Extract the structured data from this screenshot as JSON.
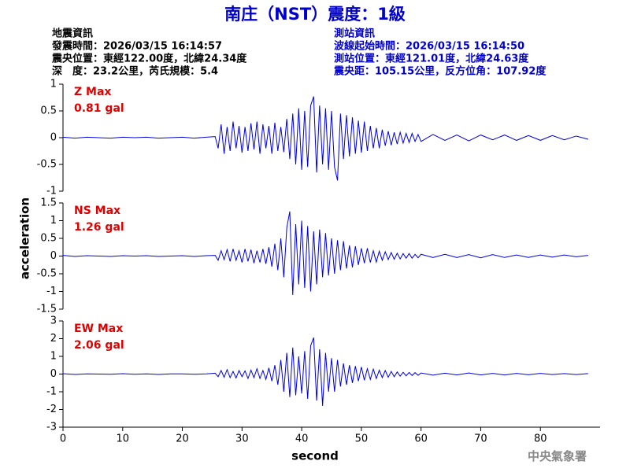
{
  "header": {
    "title": "南庄（NST）震度：1級",
    "event": [
      "地震資訊",
      "發震時間：2026/03/15 16:14:57",
      "震央位置：東經122.00度，北緯24.34度",
      "深　度：23.2公里，芮氏規模：5.4"
    ],
    "station": [
      "測站資訊",
      "波線起始時間：2026/03/15 16:14:50",
      "測站位置：東經121.01度，北緯24.63度",
      "震央距：105.15公里，反方位角：107.92度"
    ]
  },
  "footer": "中央氣象署",
  "chart_data": [
    {
      "type": "line",
      "annotation": "Z Max",
      "max_label": "0.81 gal",
      "annotation_color": "#e00000",
      "xlim": [
        0,
        90
      ],
      "ylim": [
        -1,
        1
      ],
      "yticks": [
        -1,
        -0.5,
        0,
        0.5,
        1
      ],
      "x": [
        0,
        2,
        4,
        6,
        8,
        10,
        12,
        14,
        16,
        18,
        20,
        22,
        24,
        25.5,
        26,
        26.5,
        27,
        27.5,
        28,
        28.5,
        29,
        29.5,
        30,
        30.5,
        31,
        31.5,
        32,
        32.5,
        33,
        33.5,
        34,
        34.5,
        35,
        35.5,
        36,
        36.5,
        37,
        37.5,
        38,
        38.5,
        39,
        39.5,
        40,
        40.5,
        41,
        41.5,
        42,
        42.5,
        43,
        43.5,
        44,
        44.5,
        45,
        45.5,
        46,
        46.5,
        47,
        47.5,
        48,
        48.5,
        49,
        49.5,
        50,
        50.5,
        51,
        51.5,
        52,
        52.5,
        53,
        53.5,
        54,
        54.5,
        55,
        55.5,
        56,
        56.5,
        57,
        57.5,
        58,
        58.5,
        59,
        59.5,
        60,
        62,
        64,
        66,
        68,
        70,
        72,
        74,
        76,
        78,
        80,
        82,
        84,
        86,
        88
      ],
      "series": [
        {
          "color": "#0000dd",
          "values": [
            0.01,
            -0.01,
            0.01,
            0,
            -0.01,
            0.01,
            0,
            0.01,
            -0.01,
            0,
            0.01,
            -0.01,
            0.01,
            0.02,
            -0.2,
            0.25,
            -0.3,
            0.2,
            -0.25,
            0.3,
            -0.2,
            0.22,
            -0.28,
            0.2,
            -0.25,
            0.27,
            -0.22,
            0.3,
            -0.3,
            0.25,
            -0.2,
            0.22,
            -0.3,
            0.28,
            -0.25,
            0.2,
            -0.27,
            0.35,
            -0.4,
            0.45,
            -0.5,
            0.55,
            -0.6,
            0.5,
            -0.55,
            0.6,
            0.77,
            -0.65,
            0.6,
            -0.5,
            0.55,
            -0.6,
            0.5,
            -0.55,
            -0.8,
            0.45,
            -0.4,
            0.42,
            -0.35,
            0.38,
            -0.3,
            0.32,
            -0.28,
            0.3,
            -0.25,
            0.22,
            -0.2,
            0.18,
            -0.2,
            0.15,
            -0.15,
            0.12,
            -0.14,
            0.1,
            -0.12,
            0.1,
            -0.1,
            0.08,
            -0.09,
            0.08,
            -0.07,
            0.06,
            -0.07,
            0.06,
            -0.05,
            0.05,
            -0.06,
            0.05,
            -0.04,
            0.05,
            -0.05,
            0.04,
            -0.05,
            0.04,
            -0.04,
            0.03,
            -0.03
          ]
        }
      ]
    },
    {
      "type": "line",
      "annotation": "NS Max",
      "max_label": "1.26 gal",
      "annotation_color": "#e00000",
      "ylabel": "acceleration",
      "xlim": [
        0,
        90
      ],
      "ylim": [
        -1.5,
        1.5
      ],
      "yticks": [
        -1.5,
        -1,
        -0.5,
        0,
        0.5,
        1,
        1.5
      ],
      "x": [
        0,
        2,
        4,
        6,
        8,
        10,
        12,
        14,
        16,
        18,
        20,
        22,
        24,
        25.5,
        26,
        26.5,
        27,
        27.5,
        28,
        28.5,
        29,
        29.5,
        30,
        30.5,
        31,
        31.5,
        32,
        32.5,
        33,
        33.5,
        34,
        34.5,
        35,
        35.5,
        36,
        36.5,
        37,
        37.5,
        38,
        38.5,
        39,
        39.5,
        40,
        40.5,
        41,
        41.5,
        42,
        42.5,
        43,
        43.5,
        44,
        44.5,
        45,
        45.5,
        46,
        46.5,
        47,
        47.5,
        48,
        48.5,
        49,
        49.5,
        50,
        50.5,
        51,
        51.5,
        52,
        52.5,
        53,
        53.5,
        54,
        54.5,
        55,
        55.5,
        56,
        56.5,
        57,
        57.5,
        58,
        58.5,
        59,
        59.5,
        60,
        62,
        64,
        66,
        68,
        70,
        72,
        74,
        76,
        78,
        80,
        82,
        84,
        86,
        88
      ],
      "series": [
        {
          "color": "#0000dd",
          "values": [
            0.02,
            -0.01,
            0.01,
            0,
            -0.01,
            0.01,
            0,
            0.01,
            -0.01,
            0,
            0.01,
            -0.01,
            0.01,
            0.02,
            -0.12,
            0.15,
            -0.1,
            0.18,
            -0.15,
            0.2,
            -0.12,
            0.15,
            -0.18,
            0.2,
            -0.15,
            0.18,
            -0.2,
            0.15,
            -0.18,
            0.2,
            -0.22,
            0.25,
            -0.3,
            0.35,
            -0.4,
            0.5,
            -0.6,
            0.8,
            1.26,
            -1.1,
            0.9,
            -0.8,
            1.0,
            -0.9,
            0.85,
            -1.0,
            0.7,
            -0.8,
            0.75,
            -0.6,
            0.65,
            -0.55,
            0.5,
            -0.5,
            0.45,
            -0.4,
            0.42,
            -0.35,
            0.3,
            -0.32,
            0.28,
            -0.25,
            0.22,
            -0.2,
            0.22,
            -0.18,
            0.15,
            -0.17,
            0.14,
            -0.12,
            0.12,
            -0.1,
            0.1,
            -0.09,
            0.08,
            -0.08,
            0.07,
            -0.06,
            0.07,
            -0.06,
            0.05,
            -0.05,
            0.05,
            -0.04,
            0.05,
            -0.04,
            0.04,
            -0.05,
            0.04,
            -0.04,
            0.03,
            -0.04,
            0.03,
            -0.03,
            0.03,
            -0.02,
            0.02
          ]
        }
      ]
    },
    {
      "type": "line",
      "annotation": "EW Max",
      "max_label": "2.06 gal",
      "annotation_color": "#e00000",
      "xlabel": "second",
      "xlim": [
        0,
        90
      ],
      "xticks": [
        0,
        10,
        20,
        30,
        40,
        50,
        60,
        70,
        80
      ],
      "ylim": [
        -3,
        3
      ],
      "yticks": [
        -3,
        -2,
        -1,
        0,
        1,
        2,
        3
      ],
      "x": [
        0,
        2,
        4,
        6,
        8,
        10,
        12,
        14,
        16,
        18,
        20,
        22,
        24,
        25.5,
        26,
        26.5,
        27,
        27.5,
        28,
        28.5,
        29,
        29.5,
        30,
        30.5,
        31,
        31.5,
        32,
        32.5,
        33,
        33.5,
        34,
        34.5,
        35,
        35.5,
        36,
        36.5,
        37,
        37.5,
        38,
        38.5,
        39,
        39.5,
        40,
        40.5,
        41,
        41.5,
        42,
        42.5,
        43,
        43.5,
        44,
        44.5,
        45,
        45.5,
        46,
        46.5,
        47,
        47.5,
        48,
        48.5,
        49,
        49.5,
        50,
        50.5,
        51,
        51.5,
        52,
        52.5,
        53,
        53.5,
        54,
        54.5,
        55,
        55.5,
        56,
        56.5,
        57,
        57.5,
        58,
        58.5,
        59,
        59.5,
        60,
        62,
        64,
        66,
        68,
        70,
        72,
        74,
        76,
        78,
        80,
        82,
        84,
        86,
        88
      ],
      "series": [
        {
          "color": "#0000dd",
          "values": [
            0.02,
            -0.02,
            0.01,
            0,
            -0.01,
            0.02,
            -0.01,
            0.01,
            -0.02,
            0.01,
            0.01,
            -0.01,
            0.01,
            0.05,
            -0.15,
            0.2,
            -0.18,
            0.25,
            -0.2,
            0.15,
            -0.22,
            0.2,
            -0.15,
            0.18,
            -0.25,
            0.22,
            -0.2,
            0.3,
            -0.25,
            0.2,
            -0.3,
            0.35,
            -0.4,
            0.5,
            -0.6,
            0.8,
            -1.0,
            1.2,
            -1.3,
            1.5,
            -1.2,
            1.0,
            -1.1,
            1.3,
            -1.4,
            1.6,
            2.06,
            -1.5,
            1.4,
            -1.8,
            1.2,
            -1.0,
            0.9,
            -1.0,
            0.8,
            -0.7,
            0.6,
            -0.6,
            0.5,
            -0.5,
            0.45,
            -0.4,
            0.4,
            -0.35,
            0.3,
            -0.3,
            0.28,
            -0.25,
            0.22,
            -0.2,
            0.2,
            -0.18,
            0.15,
            -0.15,
            0.12,
            -0.12,
            0.1,
            -0.1,
            0.09,
            -0.08,
            0.08,
            -0.07,
            0.06,
            -0.06,
            0.05,
            -0.05,
            0.06,
            -0.05,
            0.04,
            -0.05,
            0.04,
            -0.04,
            0.04,
            -0.03,
            0.03,
            -0.03,
            0.03
          ]
        }
      ]
    }
  ]
}
